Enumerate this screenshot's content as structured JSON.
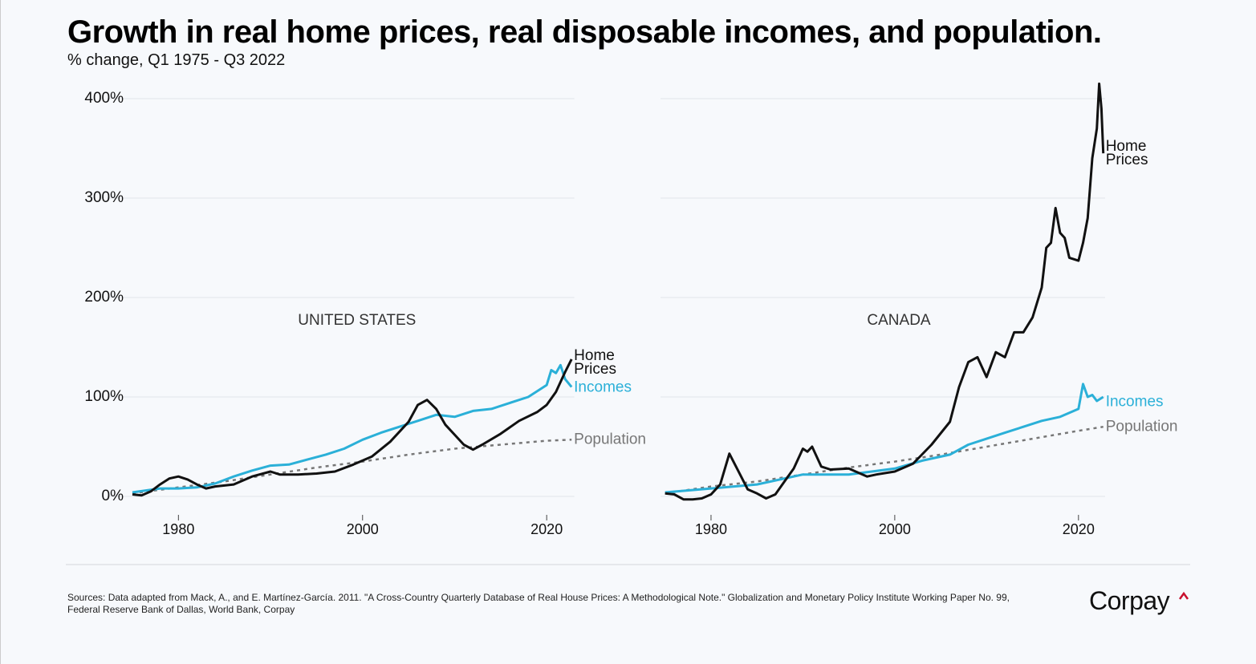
{
  "title": "Growth in real home prices, real disposable incomes, and population.",
  "subtitle": "% change, Q1 1975 - Q3 2022",
  "source": "Sources: Data adapted from Mack, A., and E. Martínez-García. 2011. \"A Cross-Country Quarterly Database of Real House Prices: A Methodological Note.\" Globalization and Monetary Policy Institute Working Paper No. 99, Federal Reserve Bank of Dallas, World Bank, Corpay",
  "logo": "Corpay",
  "chart_data": [
    {
      "type": "line",
      "title": "UNITED STATES",
      "xlim": [
        1972.3,
        2023
      ],
      "xticks": [
        1980,
        2000,
        2020
      ],
      "ylim": [
        0,
        400
      ],
      "yticks": [
        {
          "value": 0,
          "label": "0%"
        },
        {
          "value": 100,
          "label": "100%"
        },
        {
          "value": 200,
          "label": "200%"
        },
        {
          "value": 300,
          "label": "300%"
        },
        {
          "value": 400,
          "label": "400%"
        }
      ],
      "show_ytick_labels": true,
      "grid": true,
      "series": [
        {
          "name": "Home Prices",
          "color": "#111111",
          "dashed": false,
          "x": [
            1975,
            1976,
            1977,
            1978,
            1979,
            1980,
            1981,
            1982,
            1983,
            1984,
            1986,
            1988,
            1990,
            1991,
            1993,
            1995,
            1997,
            1999,
            2001,
            2003,
            2005,
            2006,
            2007,
            2008,
            2009,
            2010,
            2011,
            2012,
            2013,
            2015,
            2017,
            2019,
            2020,
            2021,
            2022,
            2022.7
          ],
          "values": [
            2,
            1,
            5,
            12,
            18,
            20,
            17,
            12,
            8,
            10,
            12,
            20,
            25,
            22,
            22,
            23,
            25,
            32,
            40,
            55,
            75,
            92,
            97,
            88,
            72,
            62,
            52,
            47,
            52,
            63,
            76,
            85,
            92,
            105,
            125,
            138
          ]
        },
        {
          "name": "Incomes",
          "color": "#2bb0d8",
          "dashed": false,
          "x": [
            1975,
            1978,
            1980,
            1982,
            1984,
            1986,
            1988,
            1990,
            1992,
            1994,
            1996,
            1998,
            2000,
            2002,
            2004,
            2006,
            2008,
            2010,
            2012,
            2014,
            2016,
            2018,
            2020,
            2020.5,
            2021,
            2021.5,
            2022,
            2022.7
          ],
          "values": [
            4,
            8,
            8,
            9,
            13,
            20,
            26,
            31,
            32,
            37,
            42,
            48,
            57,
            64,
            70,
            76,
            82,
            80,
            86,
            88,
            94,
            100,
            112,
            127,
            124,
            132,
            118,
            110
          ]
        },
        {
          "name": "Population",
          "color": "#777777",
          "dashed": true,
          "x": [
            1975,
            1980,
            1985,
            1990,
            1995,
            2000,
            2005,
            2010,
            2015,
            2020,
            2022.7
          ],
          "values": [
            3,
            9,
            15,
            22,
            29,
            35,
            42,
            48,
            52,
            56,
            57
          ]
        }
      ]
    },
    {
      "type": "line",
      "title": "CANADA",
      "xlim": [
        1974.5,
        2022.9
      ],
      "xticks": [
        1980,
        2000,
        2020
      ],
      "ylim": [
        0,
        400
      ],
      "yticks": [
        0,
        100,
        200,
        300,
        400
      ],
      "show_ytick_labels": false,
      "grid": true,
      "series": [
        {
          "name": "Home Prices",
          "color": "#111111",
          "dashed": false,
          "x": [
            1975,
            1976,
            1977,
            1978,
            1979,
            1980,
            1981,
            1982,
            1983,
            1984,
            1985,
            1986,
            1987,
            1988,
            1989,
            1990,
            1990.5,
            1991,
            1992,
            1993,
            1995,
            1997,
            1998,
            2000,
            2002,
            2004,
            2006,
            2007,
            2008,
            2009,
            2010,
            2011,
            2012,
            2013,
            2014,
            2015,
            2016,
            2016.5,
            2017,
            2017.5,
            2018,
            2018.5,
            2019,
            2020,
            2020.5,
            2021,
            2021.5,
            2022,
            2022.25,
            2022.5,
            2022.7
          ],
          "values": [
            3,
            2,
            -3,
            -3,
            -2,
            2,
            12,
            43,
            25,
            7,
            3,
            -2,
            2,
            15,
            28,
            48,
            45,
            50,
            30,
            27,
            28,
            20,
            22,
            25,
            33,
            52,
            75,
            110,
            135,
            140,
            120,
            145,
            140,
            165,
            165,
            180,
            210,
            250,
            255,
            290,
            265,
            260,
            240,
            237,
            255,
            280,
            340,
            370,
            415,
            390,
            345
          ]
        },
        {
          "name": "Incomes",
          "color": "#2bb0d8",
          "dashed": false,
          "x": [
            1975,
            1980,
            1985,
            1990,
            1995,
            2000,
            2003,
            2006,
            2008,
            2010,
            2012,
            2014,
            2016,
            2018,
            2020,
            2020.5,
            2021,
            2021.5,
            2022,
            2022.7
          ],
          "values": [
            4,
            8,
            12,
            22,
            22,
            28,
            36,
            42,
            52,
            58,
            64,
            70,
            76,
            80,
            88,
            113,
            100,
            102,
            96,
            100
          ]
        },
        {
          "name": "Population",
          "color": "#777777",
          "dashed": true,
          "x": [
            1975,
            1980,
            1985,
            1990,
            1995,
            2000,
            2005,
            2010,
            2015,
            2020,
            2022.7
          ],
          "values": [
            3,
            10,
            15,
            22,
            29,
            35,
            42,
            50,
            58,
            66,
            70
          ]
        }
      ]
    }
  ]
}
